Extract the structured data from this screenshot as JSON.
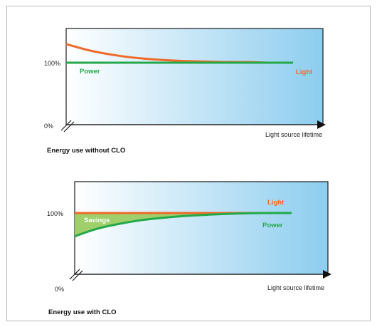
{
  "colors": {
    "light": "#ef6a2a",
    "power": "#24a84a",
    "savings": "#9fcf6a",
    "bg_left": "#ffffff",
    "bg_right": "#8dcdef"
  },
  "chart_data": [
    {
      "type": "line",
      "caption": "Energy use without CLO",
      "xlabel": "Light source lifetime",
      "y_ticks": [
        "100%",
        "0%"
      ],
      "ylim": [
        0,
        1.5
      ],
      "xlim": [
        0,
        1
      ],
      "series": [
        {
          "name": "Light",
          "color": "#ef6a2a",
          "x": [
            0,
            0.1,
            0.2,
            0.3,
            0.4,
            0.5,
            0.6,
            0.7,
            0.8,
            0.9,
            1.0
          ],
          "y": [
            1.3,
            1.2,
            1.13,
            1.08,
            1.05,
            1.03,
            1.02,
            1.01,
            1.01,
            1.0,
            1.0
          ]
        },
        {
          "name": "Power",
          "color": "#24a84a",
          "x": [
            0,
            1.0
          ],
          "y": [
            1.0,
            1.0
          ]
        }
      ]
    },
    {
      "type": "area",
      "caption": "Energy use with CLO",
      "xlabel": "Light source lifetime",
      "y_ticks": [
        "100%",
        "0%"
      ],
      "ylim": [
        0,
        1.5
      ],
      "xlim": [
        0,
        1
      ],
      "annotation": "Savings",
      "series": [
        {
          "name": "Light",
          "color": "#ef6a2a",
          "x": [
            0,
            1.0
          ],
          "y": [
            1.0,
            1.0
          ]
        },
        {
          "name": "Power",
          "color": "#24a84a",
          "x": [
            0,
            0.1,
            0.2,
            0.3,
            0.4,
            0.5,
            0.6,
            0.7,
            0.8,
            0.9,
            1.0
          ],
          "y": [
            0.62,
            0.74,
            0.82,
            0.88,
            0.92,
            0.95,
            0.97,
            0.985,
            0.995,
            1.0,
            1.0
          ]
        }
      ]
    }
  ]
}
